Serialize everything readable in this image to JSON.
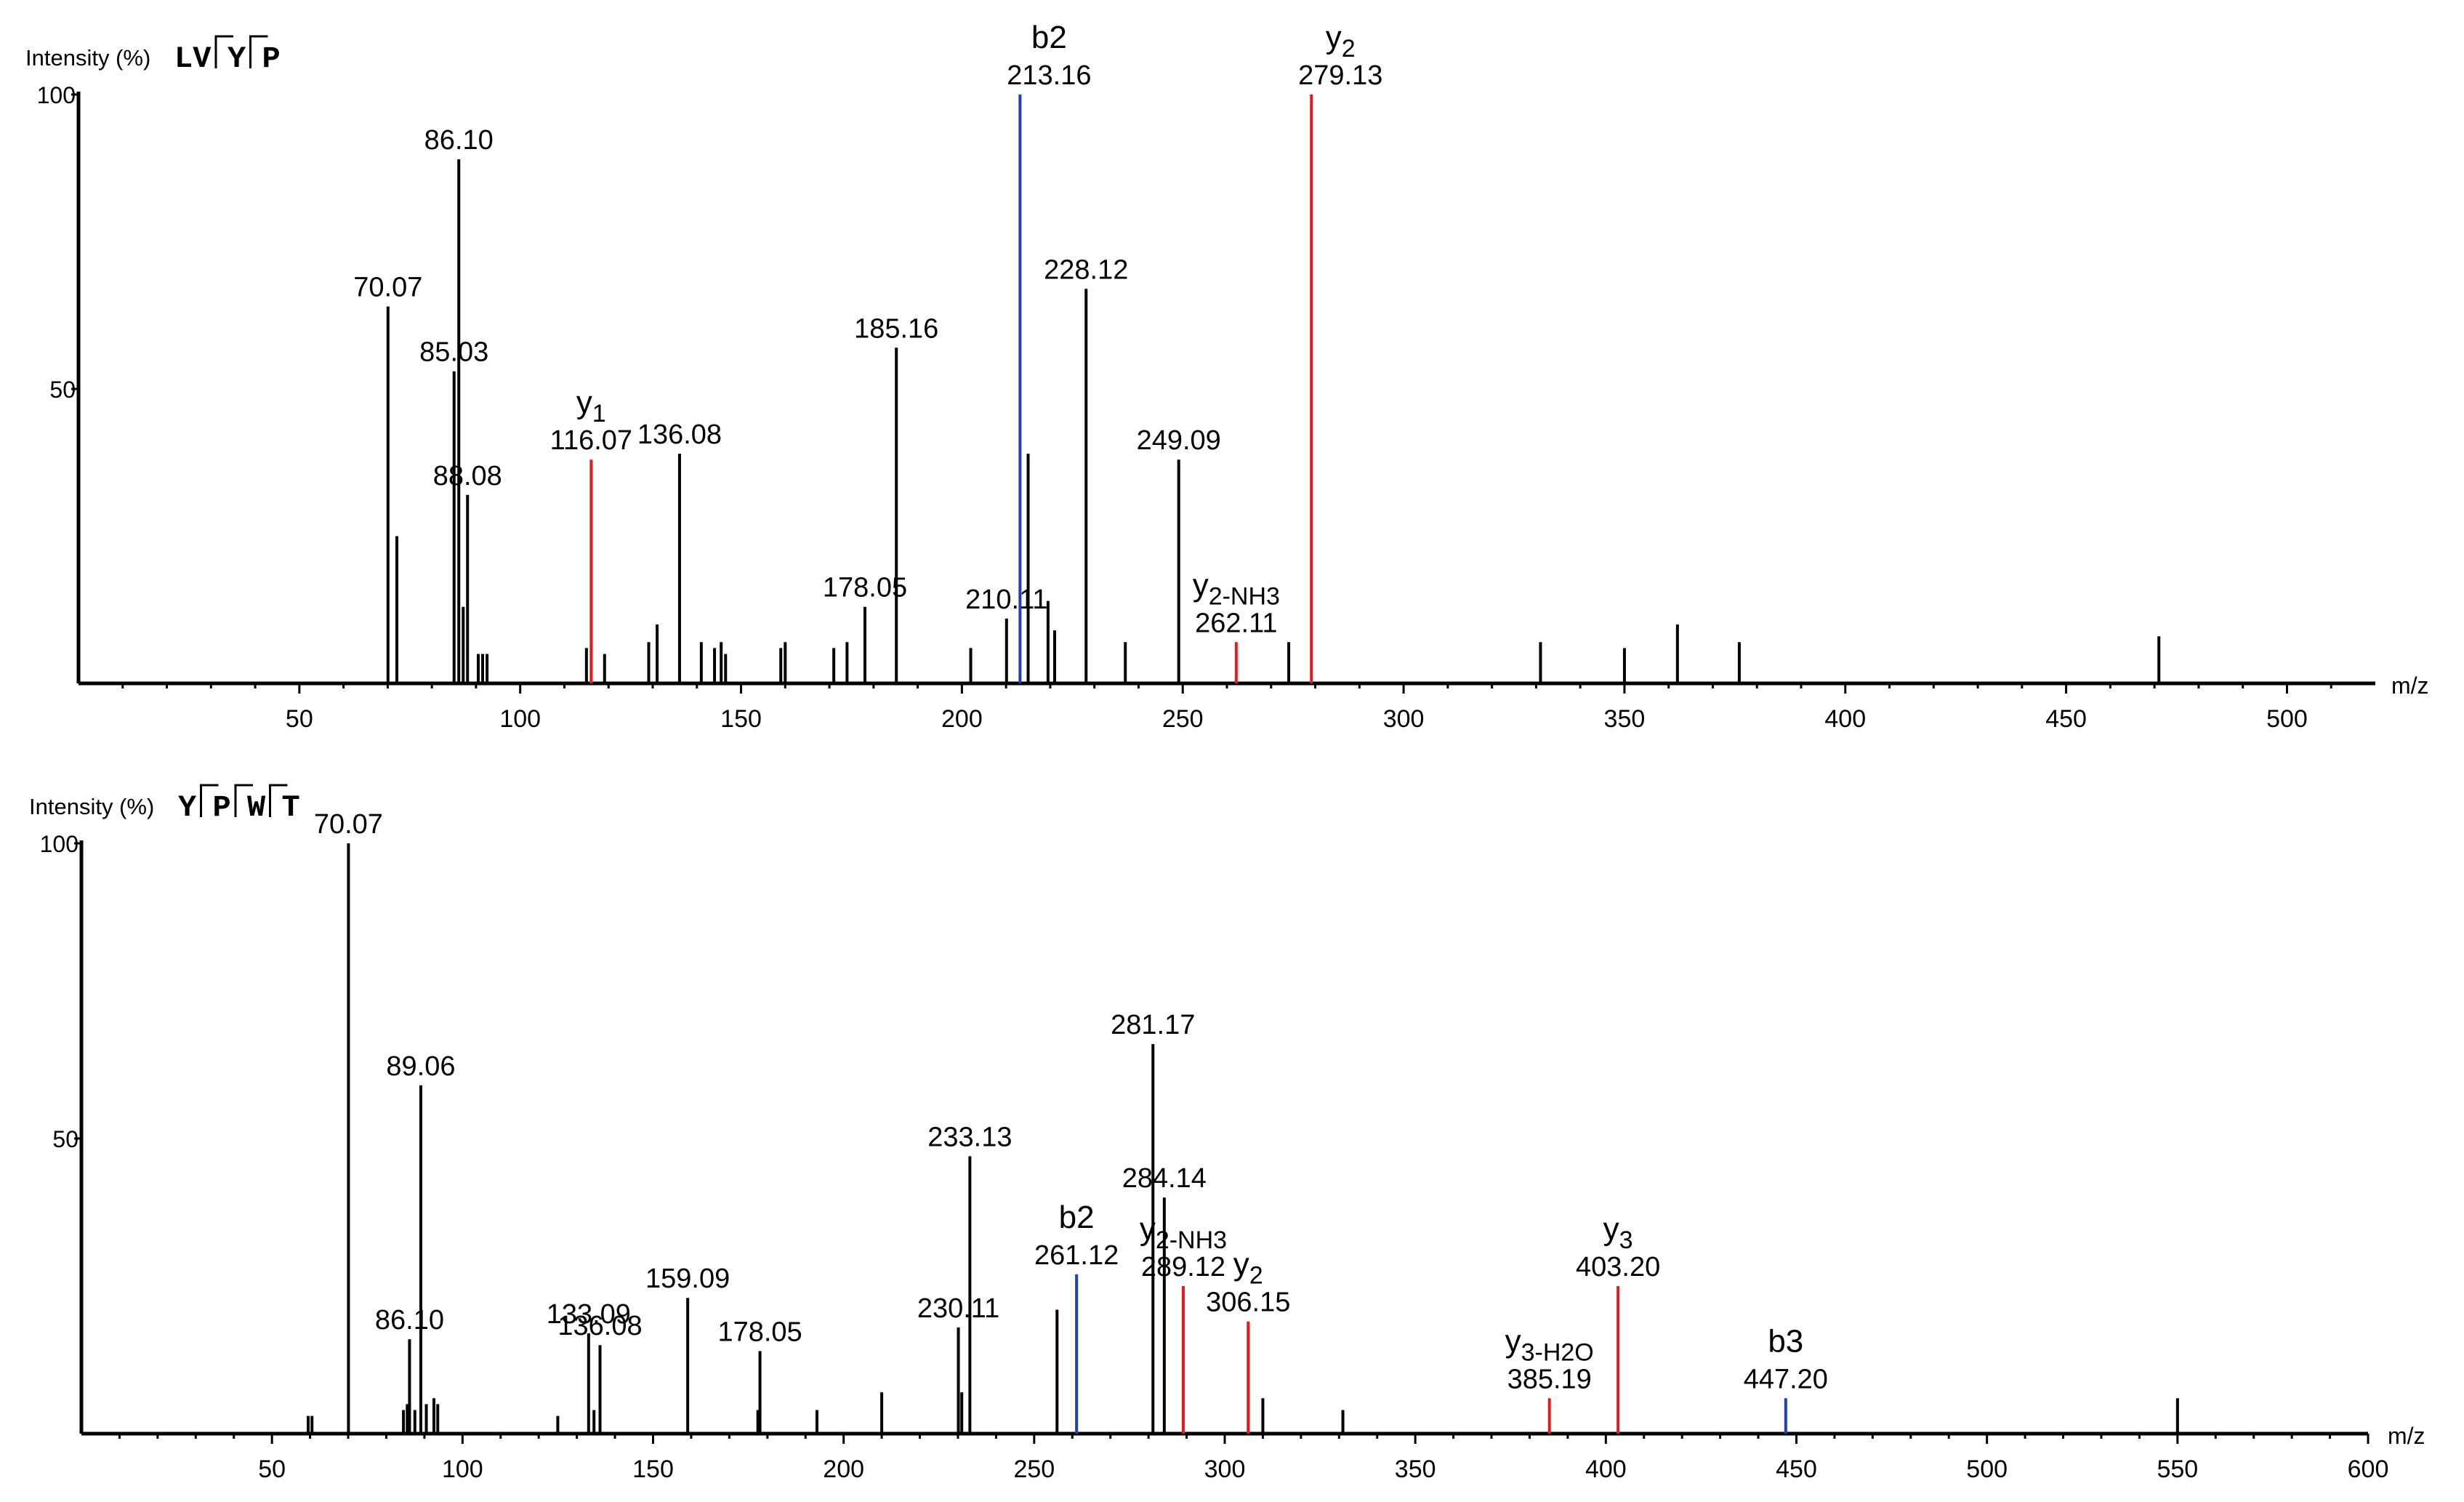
{
  "chart_data": [
    {
      "type": "bar",
      "title": "LVYP",
      "sequence": [
        "LV",
        "Y",
        "P"
      ],
      "ylabel": "Intensity (%)",
      "xlabel": "m/z",
      "xlim": [
        0,
        520
      ],
      "ylim": [
        0,
        100
      ],
      "xticks": [
        50,
        100,
        150,
        200,
        250,
        300,
        350,
        400,
        450,
        500
      ],
      "yticks": [
        {
          "value": 100,
          "label": "100"
        },
        {
          "value": 50,
          "label": "50"
        }
      ],
      "peaks": [
        {
          "mz": 70.07,
          "intensity": 64,
          "color": "#000000",
          "label": "70.07"
        },
        {
          "mz": 72.08,
          "intensity": 25,
          "color": "#000000"
        },
        {
          "mz": 85.03,
          "intensity": 53,
          "color": "#000000",
          "label": "85.03"
        },
        {
          "mz": 86.1,
          "intensity": 89,
          "color": "#000000",
          "label": "86.10"
        },
        {
          "mz": 87.1,
          "intensity": 13,
          "color": "#000000"
        },
        {
          "mz": 88.08,
          "intensity": 32,
          "color": "#000000",
          "label": "88.08"
        },
        {
          "mz": 90.5,
          "intensity": 5,
          "color": "#000000"
        },
        {
          "mz": 91.5,
          "intensity": 5,
          "color": "#000000"
        },
        {
          "mz": 92.5,
          "intensity": 5,
          "color": "#000000"
        },
        {
          "mz": 115,
          "intensity": 6,
          "color": "#000000"
        },
        {
          "mz": 116.07,
          "intensity": 38,
          "color": "#e41a1c",
          "label": "116.07",
          "ion": "y",
          "ion_sub": "1"
        },
        {
          "mz": 119.1,
          "intensity": 5,
          "color": "#000000"
        },
        {
          "mz": 129.1,
          "intensity": 7,
          "color": "#000000"
        },
        {
          "mz": 131,
          "intensity": 10,
          "color": "#000000"
        },
        {
          "mz": 136.08,
          "intensity": 39,
          "color": "#000000",
          "label": "136.08"
        },
        {
          "mz": 141,
          "intensity": 7,
          "color": "#000000"
        },
        {
          "mz": 144,
          "intensity": 6,
          "color": "#000000"
        },
        {
          "mz": 145.5,
          "intensity": 7,
          "color": "#000000"
        },
        {
          "mz": 146.5,
          "intensity": 5,
          "color": "#000000"
        },
        {
          "mz": 159,
          "intensity": 6,
          "color": "#000000"
        },
        {
          "mz": 160,
          "intensity": 7,
          "color": "#000000"
        },
        {
          "mz": 171,
          "intensity": 6,
          "color": "#000000"
        },
        {
          "mz": 174,
          "intensity": 7,
          "color": "#000000"
        },
        {
          "mz": 178.05,
          "intensity": 13,
          "color": "#000000",
          "label": "178.05"
        },
        {
          "mz": 185.16,
          "intensity": 57,
          "color": "#000000",
          "label": "185.16"
        },
        {
          "mz": 202,
          "intensity": 6,
          "color": "#000000"
        },
        {
          "mz": 210.11,
          "intensity": 11,
          "color": "#000000",
          "label": "210.11"
        },
        {
          "mz": 213.16,
          "intensity": 100,
          "color": "#1f3fbf",
          "label": "213.16",
          "ion": "b2"
        },
        {
          "mz": 215,
          "intensity": 39,
          "color": "#000000"
        },
        {
          "mz": 219.5,
          "intensity": 14,
          "color": "#000000"
        },
        {
          "mz": 221,
          "intensity": 9,
          "color": "#000000"
        },
        {
          "mz": 228.12,
          "intensity": 67,
          "color": "#000000",
          "label": "228.12"
        },
        {
          "mz": 237,
          "intensity": 7,
          "color": "#000000"
        },
        {
          "mz": 249.09,
          "intensity": 38,
          "color": "#000000",
          "label": "249.09"
        },
        {
          "mz": 262.11,
          "intensity": 7,
          "color": "#e41a1c",
          "label": "262.11",
          "ion": "y",
          "ion_sub": "2",
          "ion_suffix": "-NH3"
        },
        {
          "mz": 274,
          "intensity": 7,
          "color": "#000000"
        },
        {
          "mz": 279.13,
          "intensity": 100,
          "color": "#e41a1c",
          "label": "279.13",
          "ion": "y",
          "ion_sub": "2"
        },
        {
          "mz": 331,
          "intensity": 7,
          "color": "#000000"
        },
        {
          "mz": 350,
          "intensity": 6,
          "color": "#000000"
        },
        {
          "mz": 362,
          "intensity": 10,
          "color": "#000000"
        },
        {
          "mz": 376,
          "intensity": 7,
          "color": "#000000"
        },
        {
          "mz": 471,
          "intensity": 8,
          "color": "#000000"
        }
      ]
    },
    {
      "type": "bar",
      "title": "YPWT",
      "sequence": [
        "Y",
        "P",
        "W",
        "T"
      ],
      "ylabel": "Intensity (%)",
      "xlabel": "m/z",
      "xlim": [
        0,
        600
      ],
      "ylim": [
        0,
        100
      ],
      "xticks": [
        50,
        100,
        150,
        200,
        250,
        300,
        350,
        400,
        450,
        500,
        550,
        600
      ],
      "yticks": [
        {
          "value": 100,
          "label": "100"
        },
        {
          "value": 50,
          "label": "50"
        }
      ],
      "peaks": [
        {
          "mz": 59.5,
          "intensity": 3,
          "color": "#000000"
        },
        {
          "mz": 60.5,
          "intensity": 3,
          "color": "#000000"
        },
        {
          "mz": 70.07,
          "intensity": 100,
          "color": "#000000",
          "label": "70.07"
        },
        {
          "mz": 84.5,
          "intensity": 4,
          "color": "#000000"
        },
        {
          "mz": 85.5,
          "intensity": 5,
          "color": "#000000"
        },
        {
          "mz": 86.1,
          "intensity": 16,
          "color": "#000000",
          "label": "86.10"
        },
        {
          "mz": 87.5,
          "intensity": 4,
          "color": "#000000"
        },
        {
          "mz": 89.06,
          "intensity": 59,
          "color": "#000000",
          "label": "89.06"
        },
        {
          "mz": 90.5,
          "intensity": 5,
          "color": "#000000"
        },
        {
          "mz": 92.5,
          "intensity": 6,
          "color": "#000000"
        },
        {
          "mz": 93.5,
          "intensity": 5,
          "color": "#000000"
        },
        {
          "mz": 125,
          "intensity": 3,
          "color": "#000000"
        },
        {
          "mz": 133.09,
          "intensity": 17,
          "color": "#000000",
          "label": "133.09"
        },
        {
          "mz": 134.5,
          "intensity": 4,
          "color": "#000000"
        },
        {
          "mz": 136.08,
          "intensity": 15,
          "color": "#000000",
          "label": "136.08"
        },
        {
          "mz": 159.09,
          "intensity": 23,
          "color": "#000000",
          "label": "159.09"
        },
        {
          "mz": 177.5,
          "intensity": 4,
          "color": "#000000"
        },
        {
          "mz": 178.05,
          "intensity": 14,
          "color": "#000000",
          "label": "178.05"
        },
        {
          "mz": 193,
          "intensity": 4,
          "color": "#000000"
        },
        {
          "mz": 210,
          "intensity": 7,
          "color": "#000000"
        },
        {
          "mz": 230.11,
          "intensity": 18,
          "color": "#000000",
          "label": "230.11"
        },
        {
          "mz": 231,
          "intensity": 7,
          "color": "#000000"
        },
        {
          "mz": 233.13,
          "intensity": 47,
          "color": "#000000",
          "label": "233.13"
        },
        {
          "mz": 256,
          "intensity": 21,
          "color": "#000000"
        },
        {
          "mz": 261.12,
          "intensity": 27,
          "color": "#1f3fbf",
          "label": "261.12",
          "ion": "b2"
        },
        {
          "mz": 281.17,
          "intensity": 66,
          "color": "#000000",
          "label": "281.17"
        },
        {
          "mz": 284.14,
          "intensity": 40,
          "color": "#000000",
          "label": "284.14"
        },
        {
          "mz": 289.12,
          "intensity": 25,
          "color": "#e41a1c",
          "label": "289.12",
          "ion": "y",
          "ion_sub": "2",
          "ion_suffix": "-NH3"
        },
        {
          "mz": 306.15,
          "intensity": 19,
          "color": "#e41a1c",
          "label": "306.15",
          "ion": "y",
          "ion_sub": "2"
        },
        {
          "mz": 310,
          "intensity": 6,
          "color": "#000000"
        },
        {
          "mz": 331,
          "intensity": 4,
          "color": "#000000"
        },
        {
          "mz": 385.19,
          "intensity": 6,
          "color": "#e41a1c",
          "label": "385.19",
          "ion": "y",
          "ion_sub": "3",
          "ion_suffix": "-H2O"
        },
        {
          "mz": 403.2,
          "intensity": 25,
          "color": "#e41a1c",
          "label": "403.20",
          "ion": "y",
          "ion_sub": "3"
        },
        {
          "mz": 447.2,
          "intensity": 6,
          "color": "#1f3fbf",
          "label": "447.20",
          "ion": "b3"
        },
        {
          "mz": 550,
          "intensity": 6,
          "color": "#000000"
        }
      ]
    }
  ]
}
